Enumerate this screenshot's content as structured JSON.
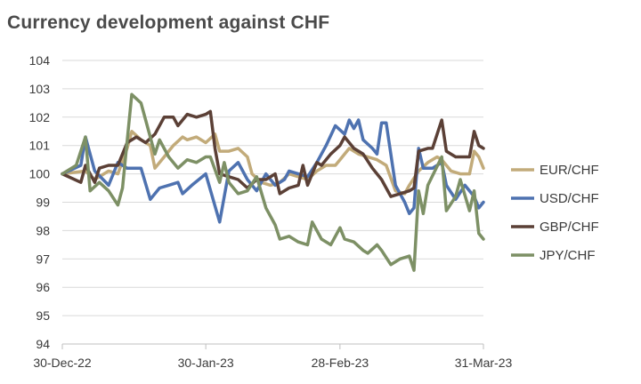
{
  "chart_data": {
    "type": "line",
    "title": "Currency development against CHF",
    "xlabel": "",
    "ylabel": "",
    "ylim": [
      94,
      104
    ],
    "y_ticks": [
      "94",
      "95",
      "96",
      "97",
      "98",
      "99",
      "100",
      "101",
      "102",
      "103",
      "104"
    ],
    "x_tick_labels": [
      "30-Dec-22",
      "30-Jan-23",
      "28-Feb-23",
      "31-Mar-23"
    ],
    "x_tick_dates": [
      "2022-12-30",
      "2023-01-30",
      "2023-02-28",
      "2023-03-31"
    ],
    "grid": true,
    "legend_position": "right",
    "series": [
      {
        "name": "EUR/CHF",
        "color": "#c2ab7a",
        "points": [
          [
            "2022-12-30",
            100.0
          ],
          [
            "2023-01-04",
            100.1
          ],
          [
            "2023-01-06",
            99.8
          ],
          [
            "2023-01-09",
            100.1
          ],
          [
            "2023-01-11",
            100.0
          ],
          [
            "2023-01-13",
            100.9
          ],
          [
            "2023-01-14",
            101.5
          ],
          [
            "2023-01-16",
            101.2
          ],
          [
            "2023-01-18",
            101.0
          ],
          [
            "2023-01-19",
            100.2
          ],
          [
            "2023-01-21",
            100.6
          ],
          [
            "2023-01-23",
            101.0
          ],
          [
            "2023-01-25",
            101.3
          ],
          [
            "2023-01-26",
            101.2
          ],
          [
            "2023-01-28",
            101.3
          ],
          [
            "2023-01-30",
            101.1
          ],
          [
            "2023-02-01",
            101.4
          ],
          [
            "2023-02-02",
            100.8
          ],
          [
            "2023-02-04",
            100.8
          ],
          [
            "2023-02-06",
            100.9
          ],
          [
            "2023-02-08",
            100.6
          ],
          [
            "2023-02-09",
            100.0
          ],
          [
            "2023-02-11",
            99.7
          ],
          [
            "2023-02-13",
            99.6
          ],
          [
            "2023-02-15",
            99.7
          ],
          [
            "2023-02-17",
            100.0
          ],
          [
            "2023-02-19",
            99.9
          ],
          [
            "2023-02-21",
            99.8
          ],
          [
            "2023-02-23",
            100.1
          ],
          [
            "2023-02-25",
            100.3
          ],
          [
            "2023-02-27",
            100.3
          ],
          [
            "2023-02-28",
            100.5
          ],
          [
            "2023-03-02",
            100.9
          ],
          [
            "2023-03-04",
            100.7
          ],
          [
            "2023-03-06",
            100.6
          ],
          [
            "2023-03-08",
            100.5
          ],
          [
            "2023-03-10",
            100.3
          ],
          [
            "2023-03-12",
            99.4
          ],
          [
            "2023-03-14",
            99.3
          ],
          [
            "2023-03-15",
            99.6
          ],
          [
            "2023-03-17",
            100.1
          ],
          [
            "2023-03-19",
            100.4
          ],
          [
            "2023-03-21",
            100.6
          ],
          [
            "2023-03-22",
            100.5
          ],
          [
            "2023-03-24",
            100.1
          ],
          [
            "2023-03-26",
            100.0
          ],
          [
            "2023-03-28",
            100.0
          ],
          [
            "2023-03-29",
            100.8
          ],
          [
            "2023-03-30",
            100.6
          ],
          [
            "2023-03-31",
            100.2
          ]
        ]
      },
      {
        "name": "USD/CHF",
        "color": "#4e72b0",
        "points": [
          [
            "2022-12-30",
            100.0
          ],
          [
            "2023-01-03",
            100.3
          ],
          [
            "2023-01-04",
            101.3
          ],
          [
            "2023-01-06",
            100.1
          ],
          [
            "2023-01-09",
            99.6
          ],
          [
            "2023-01-11",
            100.4
          ],
          [
            "2023-01-13",
            100.2
          ],
          [
            "2023-01-16",
            100.2
          ],
          [
            "2023-01-18",
            99.1
          ],
          [
            "2023-01-20",
            99.5
          ],
          [
            "2023-01-22",
            99.6
          ],
          [
            "2023-01-24",
            99.7
          ],
          [
            "2023-01-25",
            99.3
          ],
          [
            "2023-01-27",
            99.6
          ],
          [
            "2023-01-30",
            100.0
          ],
          [
            "2023-02-02",
            98.3
          ],
          [
            "2023-02-04",
            100.1
          ],
          [
            "2023-02-06",
            100.4
          ],
          [
            "2023-02-08",
            99.8
          ],
          [
            "2023-02-10",
            99.4
          ],
          [
            "2023-02-12",
            100.0
          ],
          [
            "2023-02-14",
            99.6
          ],
          [
            "2023-02-16",
            99.8
          ],
          [
            "2023-02-17",
            100.1
          ],
          [
            "2023-02-19",
            100.0
          ],
          [
            "2023-02-21",
            99.9
          ],
          [
            "2023-02-23",
            100.4
          ],
          [
            "2023-02-25",
            101.0
          ],
          [
            "2023-02-27",
            101.7
          ],
          [
            "2023-03-01",
            101.4
          ],
          [
            "2023-03-02",
            101.9
          ],
          [
            "2023-03-03",
            101.6
          ],
          [
            "2023-03-04",
            101.9
          ],
          [
            "2023-03-05",
            101.2
          ],
          [
            "2023-03-07",
            100.9
          ],
          [
            "2023-03-08",
            100.7
          ],
          [
            "2023-03-09",
            101.8
          ],
          [
            "2023-03-10",
            101.8
          ],
          [
            "2023-03-12",
            99.6
          ],
          [
            "2023-03-14",
            99.0
          ],
          [
            "2023-03-15",
            98.6
          ],
          [
            "2023-03-16",
            98.8
          ],
          [
            "2023-03-17",
            100.9
          ],
          [
            "2023-03-18",
            100.2
          ],
          [
            "2023-03-20",
            100.2
          ],
          [
            "2023-03-22",
            100.4
          ],
          [
            "2023-03-23",
            99.6
          ],
          [
            "2023-03-25",
            99.1
          ],
          [
            "2023-03-27",
            99.6
          ],
          [
            "2023-03-29",
            99.2
          ],
          [
            "2023-03-30",
            98.8
          ],
          [
            "2023-03-31",
            99.0
          ]
        ]
      },
      {
        "name": "GBP/CHF",
        "color": "#5b4036",
        "points": [
          [
            "2022-12-30",
            100.0
          ],
          [
            "2023-01-03",
            99.7
          ],
          [
            "2023-01-04",
            100.3
          ],
          [
            "2023-01-06",
            99.7
          ],
          [
            "2023-01-07",
            100.2
          ],
          [
            "2023-01-09",
            100.3
          ],
          [
            "2023-01-11",
            100.3
          ],
          [
            "2023-01-13",
            101.1
          ],
          [
            "2023-01-15",
            101.3
          ],
          [
            "2023-01-17",
            101.1
          ],
          [
            "2023-01-19",
            101.4
          ],
          [
            "2023-01-21",
            102.0
          ],
          [
            "2023-01-23",
            102.0
          ],
          [
            "2023-01-24",
            101.7
          ],
          [
            "2023-01-26",
            102.1
          ],
          [
            "2023-01-28",
            102.0
          ],
          [
            "2023-01-30",
            102.1
          ],
          [
            "2023-01-31",
            102.2
          ],
          [
            "2023-02-01",
            100.9
          ],
          [
            "2023-02-02",
            100.0
          ],
          [
            "2023-02-04",
            99.9
          ],
          [
            "2023-02-06",
            99.8
          ],
          [
            "2023-02-08",
            99.5
          ],
          [
            "2023-02-10",
            99.8
          ],
          [
            "2023-02-12",
            99.8
          ],
          [
            "2023-02-14",
            100.0
          ],
          [
            "2023-02-15",
            99.3
          ],
          [
            "2023-02-17",
            99.5
          ],
          [
            "2023-02-19",
            99.6
          ],
          [
            "2023-02-20",
            100.3
          ],
          [
            "2023-02-21",
            99.6
          ],
          [
            "2023-02-23",
            100.4
          ],
          [
            "2023-02-24",
            100.3
          ],
          [
            "2023-02-26",
            100.7
          ],
          [
            "2023-02-28",
            101.0
          ],
          [
            "2023-03-01",
            101.3
          ],
          [
            "2023-03-03",
            100.9
          ],
          [
            "2023-03-05",
            100.7
          ],
          [
            "2023-03-07",
            100.2
          ],
          [
            "2023-03-09",
            99.8
          ],
          [
            "2023-03-11",
            99.2
          ],
          [
            "2023-03-13",
            99.3
          ],
          [
            "2023-03-15",
            99.4
          ],
          [
            "2023-03-16",
            99.5
          ],
          [
            "2023-03-17",
            100.8
          ],
          [
            "2023-03-19",
            100.9
          ],
          [
            "2023-03-20",
            100.9
          ],
          [
            "2023-03-22",
            101.9
          ],
          [
            "2023-03-23",
            100.8
          ],
          [
            "2023-03-25",
            100.6
          ],
          [
            "2023-03-27",
            100.6
          ],
          [
            "2023-03-28",
            100.6
          ],
          [
            "2023-03-29",
            101.5
          ],
          [
            "2023-03-30",
            101.0
          ],
          [
            "2023-03-31",
            100.9
          ]
        ]
      },
      {
        "name": "JPY/CHF",
        "color": "#7d9065",
        "points": [
          [
            "2022-12-30",
            100.0
          ],
          [
            "2023-01-02",
            100.3
          ],
          [
            "2023-01-04",
            101.3
          ],
          [
            "2023-01-05",
            99.4
          ],
          [
            "2023-01-07",
            99.7
          ],
          [
            "2023-01-09",
            99.4
          ],
          [
            "2023-01-11",
            98.9
          ],
          [
            "2023-01-12",
            99.5
          ],
          [
            "2023-01-14",
            102.8
          ],
          [
            "2023-01-16",
            102.5
          ],
          [
            "2023-01-17",
            101.9
          ],
          [
            "2023-01-19",
            100.7
          ],
          [
            "2023-01-20",
            101.2
          ],
          [
            "2023-01-22",
            100.6
          ],
          [
            "2023-01-24",
            100.2
          ],
          [
            "2023-01-26",
            100.5
          ],
          [
            "2023-01-28",
            100.4
          ],
          [
            "2023-01-30",
            100.6
          ],
          [
            "2023-01-31",
            100.6
          ],
          [
            "2023-02-02",
            99.7
          ],
          [
            "2023-02-03",
            100.4
          ],
          [
            "2023-02-04",
            99.7
          ],
          [
            "2023-02-06",
            99.3
          ],
          [
            "2023-02-08",
            99.4
          ],
          [
            "2023-02-10",
            99.9
          ],
          [
            "2023-02-12",
            98.8
          ],
          [
            "2023-02-14",
            98.2
          ],
          [
            "2023-02-15",
            97.7
          ],
          [
            "2023-02-17",
            97.8
          ],
          [
            "2023-02-19",
            97.6
          ],
          [
            "2023-02-21",
            97.5
          ],
          [
            "2023-02-22",
            98.3
          ],
          [
            "2023-02-24",
            97.7
          ],
          [
            "2023-02-26",
            97.5
          ],
          [
            "2023-02-28",
            98.1
          ],
          [
            "2023-03-01",
            97.7
          ],
          [
            "2023-03-03",
            97.6
          ],
          [
            "2023-03-05",
            97.3
          ],
          [
            "2023-03-06",
            97.2
          ],
          [
            "2023-03-08",
            97.5
          ],
          [
            "2023-03-09",
            97.3
          ],
          [
            "2023-03-11",
            96.8
          ],
          [
            "2023-03-13",
            97.0
          ],
          [
            "2023-03-15",
            97.1
          ],
          [
            "2023-03-16",
            96.6
          ],
          [
            "2023-03-17",
            99.4
          ],
          [
            "2023-03-18",
            98.6
          ],
          [
            "2023-03-19",
            99.6
          ],
          [
            "2023-03-22",
            100.6
          ],
          [
            "2023-03-23",
            98.7
          ],
          [
            "2023-03-25",
            99.2
          ],
          [
            "2023-03-26",
            99.8
          ],
          [
            "2023-03-28",
            98.7
          ],
          [
            "2023-03-29",
            99.4
          ],
          [
            "2023-03-30",
            97.9
          ],
          [
            "2023-03-31",
            97.7
          ]
        ]
      }
    ]
  }
}
